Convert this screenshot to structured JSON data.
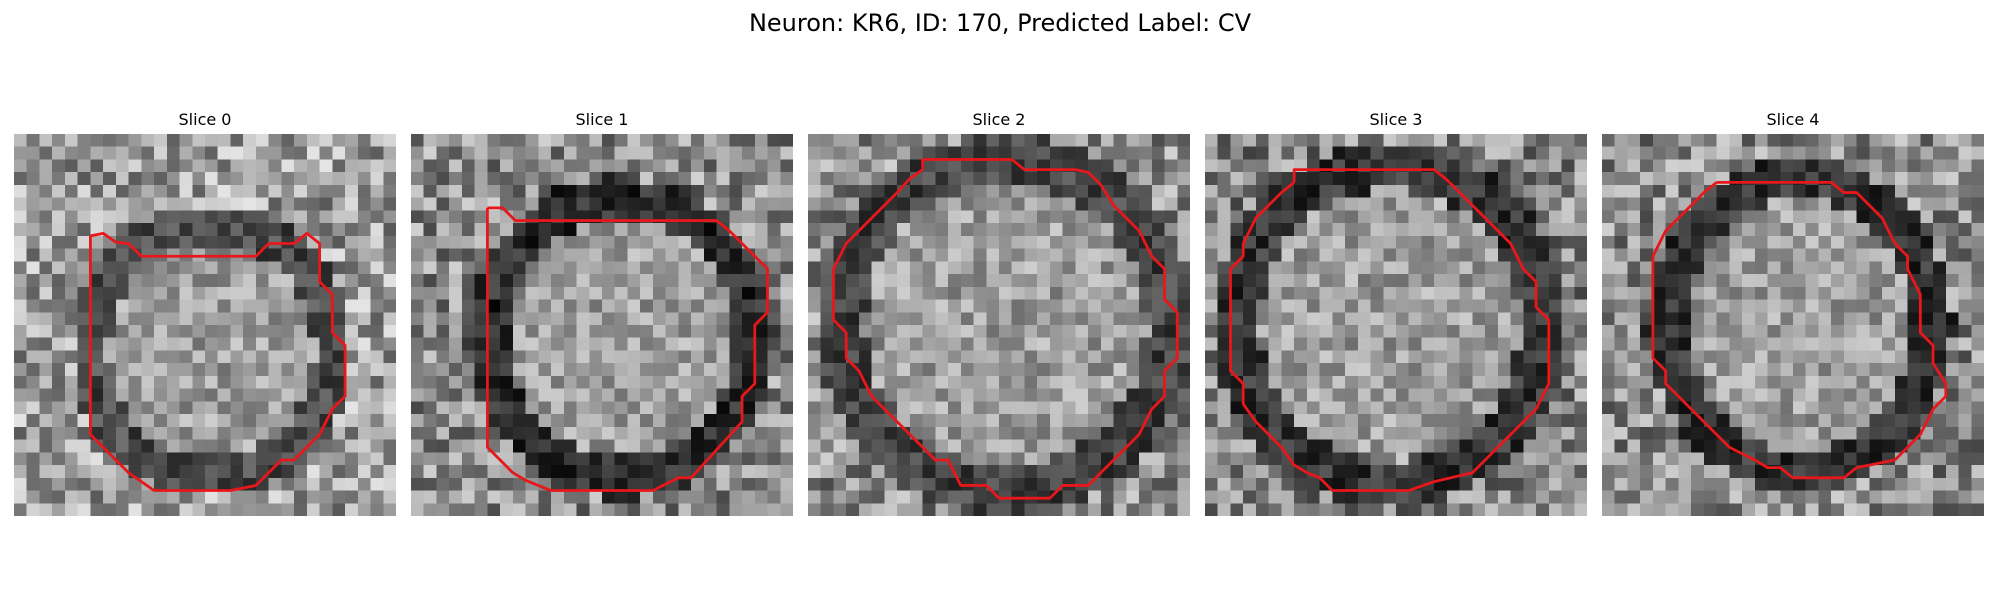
{
  "title": "Neuron: KR6, ID: 170, Predicted Label: CV",
  "slices": [
    {
      "label": "Slice 0"
    },
    {
      "label": "Slice 1"
    },
    {
      "label": "Slice 2"
    },
    {
      "label": "Slice 3"
    },
    {
      "label": "Slice 4"
    }
  ],
  "contour_color": "#e8171b",
  "colormap": "gray"
}
